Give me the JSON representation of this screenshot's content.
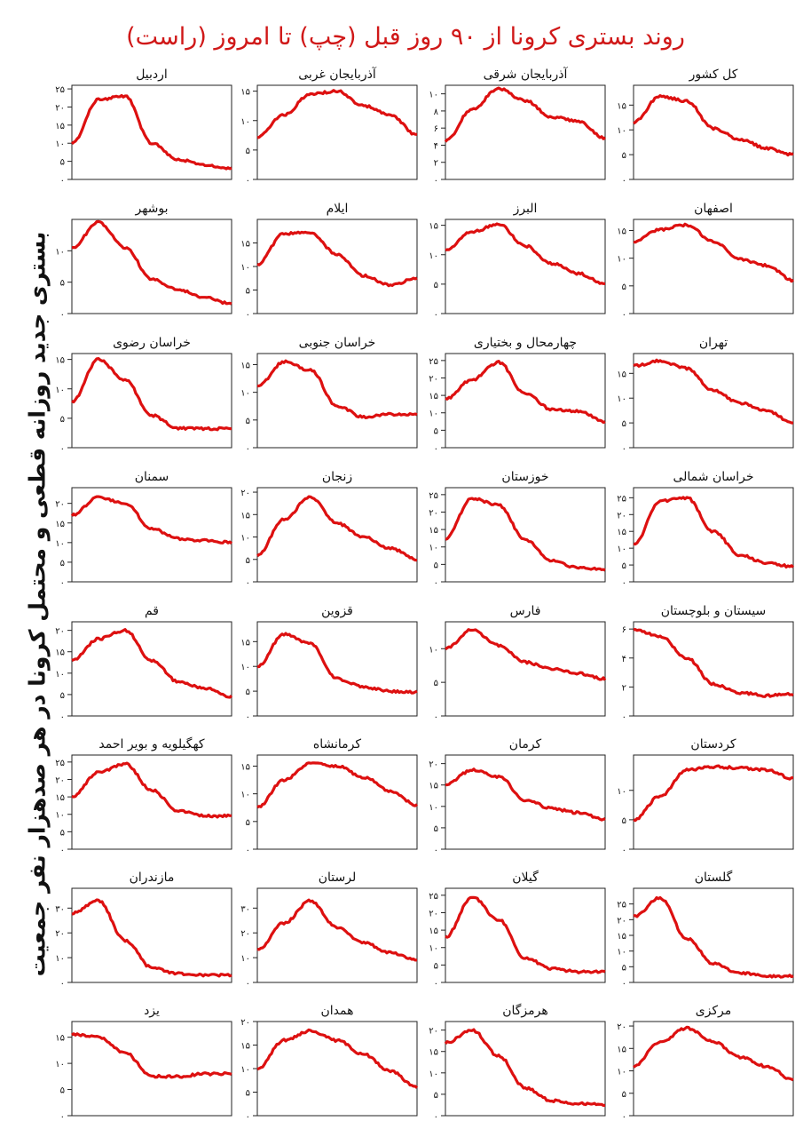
{
  "title": "روند بستری کرونا از ۹۰ روز قبل (چپ) تا امروز (راست)",
  "ylabel": "بستری جدید روزانه قطعی و محتمل کرونا در هر صدهزار نفر جمعیت",
  "colors": {
    "line": "#dd1010",
    "axis": "#222222",
    "title": "#d01818"
  },
  "chart_data": [
    {
      "type": "line",
      "title": "کل کشور",
      "ylim": [
        0,
        19
      ],
      "yticks": [
        0,
        5,
        10,
        15
      ],
      "tick_labels": [
        "۰",
        "۵",
        "۱۰",
        "۱۵"
      ],
      "x": [
        0,
        15,
        30,
        45,
        60,
        75,
        90
      ],
      "y": [
        11.5,
        16.8,
        15.8,
        10.3,
        8.1,
        6.3,
        5.0
      ]
    },
    {
      "type": "line",
      "title": "آذربایجان شرقی",
      "ylim": [
        0,
        11
      ],
      "yticks": [
        0,
        2,
        4,
        6,
        8,
        10
      ],
      "tick_labels": [
        "۰",
        "۲",
        "۴",
        "۶",
        "۸",
        "۱۰"
      ],
      "x": [
        0,
        15,
        30,
        45,
        60,
        75,
        90
      ],
      "y": [
        4.5,
        8.2,
        10.6,
        9.2,
        7.3,
        6.8,
        4.8
      ]
    },
    {
      "type": "line",
      "title": "آذربایجان غربی",
      "ylim": [
        0,
        16
      ],
      "yticks": [
        0,
        5,
        10,
        15
      ],
      "tick_labels": [
        "۰",
        "۵",
        "۱۰",
        "۱۵"
      ],
      "x": [
        0,
        15,
        30,
        45,
        60,
        75,
        90
      ],
      "y": [
        7.2,
        11.0,
        14.5,
        15.0,
        12.5,
        11.0,
        7.5
      ]
    },
    {
      "type": "line",
      "title": "اردبیل",
      "ylim": [
        0,
        26
      ],
      "yticks": [
        0,
        5,
        10,
        15,
        20,
        25
      ],
      "tick_labels": [
        "۰",
        "۵",
        "۱۰",
        "۱۵",
        "۲۰",
        "۲۵"
      ],
      "x": [
        0,
        15,
        30,
        45,
        60,
        75,
        90
      ],
      "y": [
        10.0,
        22.0,
        23.0,
        10.0,
        5.5,
        4.0,
        3.0
      ]
    },
    {
      "type": "line",
      "title": "اصفهان",
      "ylim": [
        0,
        17
      ],
      "yticks": [
        0,
        5,
        10,
        15
      ],
      "tick_labels": [
        "۰",
        "۵",
        "۱۰",
        "۱۵"
      ],
      "x": [
        0,
        15,
        30,
        45,
        60,
        75,
        90
      ],
      "y": [
        13.0,
        15.2,
        16.0,
        13.0,
        9.8,
        8.7,
        6.0
      ]
    },
    {
      "type": "line",
      "title": "البرز",
      "ylim": [
        0,
        16
      ],
      "yticks": [
        0,
        5,
        10,
        15
      ],
      "tick_labels": [
        "۰",
        "۵",
        "۱۰",
        "۱۵"
      ],
      "x": [
        0,
        15,
        30,
        45,
        60,
        75,
        90
      ],
      "y": [
        10.8,
        13.9,
        15.2,
        11.5,
        8.5,
        6.8,
        5.0
      ]
    },
    {
      "type": "line",
      "title": "ایلام",
      "ylim": [
        0,
        20
      ],
      "yticks": [
        0,
        5,
        10,
        15
      ],
      "tick_labels": [
        "۰",
        "۵",
        "۱۰",
        "۱۵"
      ],
      "x": [
        0,
        15,
        30,
        45,
        60,
        75,
        90
      ],
      "y": [
        10.5,
        17.0,
        17.2,
        12.5,
        8.0,
        6.0,
        7.5
      ]
    },
    {
      "type": "line",
      "title": "بوشهر",
      "ylim": [
        0,
        15
      ],
      "yticks": [
        0,
        5,
        10
      ],
      "tick_labels": [
        "۰",
        "۵",
        "۱۰"
      ],
      "x": [
        0,
        15,
        30,
        45,
        60,
        75,
        90
      ],
      "y": [
        10.5,
        14.5,
        10.5,
        5.5,
        3.8,
        2.6,
        1.5
      ]
    },
    {
      "type": "line",
      "title": "تهران",
      "ylim": [
        0,
        19
      ],
      "yticks": [
        0,
        5,
        10,
        15
      ],
      "tick_labels": [
        "۰",
        "۵",
        "۱۰",
        "۱۵"
      ],
      "x": [
        0,
        15,
        30,
        45,
        60,
        75,
        90
      ],
      "y": [
        16.5,
        17.5,
        16.0,
        11.5,
        9.0,
        7.5,
        5.0
      ]
    },
    {
      "type": "line",
      "title": "چهارمحال و بختیاری",
      "ylim": [
        0,
        27
      ],
      "yticks": [
        0,
        5,
        10,
        15,
        20,
        25
      ],
      "tick_labels": [
        "۰",
        "۵",
        "۱۰",
        "۱۵",
        "۲۰",
        "۲۵"
      ],
      "x": [
        0,
        15,
        30,
        45,
        60,
        75,
        90
      ],
      "y": [
        14.0,
        19.5,
        24.5,
        15.5,
        11.0,
        10.5,
        7.5
      ]
    },
    {
      "type": "line",
      "title": "خراسان جنوبی",
      "ylim": [
        0,
        17
      ],
      "yticks": [
        0,
        5,
        10,
        15
      ],
      "tick_labels": [
        "۰",
        "۵",
        "۱۰",
        "۱۵"
      ],
      "x": [
        0,
        15,
        30,
        45,
        60,
        75,
        90
      ],
      "y": [
        11.0,
        15.5,
        14.0,
        7.5,
        5.5,
        6.0,
        6.0
      ]
    },
    {
      "type": "line",
      "title": "خراسان رضوی",
      "ylim": [
        0,
        16
      ],
      "yticks": [
        0,
        5,
        10,
        15
      ],
      "tick_labels": [
        "۰",
        "۵",
        "۱۰",
        "۱۵"
      ],
      "x": [
        0,
        15,
        30,
        45,
        60,
        75,
        90
      ],
      "y": [
        7.8,
        15.0,
        11.5,
        5.5,
        3.3,
        3.2,
        3.3
      ]
    },
    {
      "type": "line",
      "title": "خراسان شمالی",
      "ylim": [
        0,
        28
      ],
      "yticks": [
        0,
        5,
        10,
        15,
        20,
        25
      ],
      "tick_labels": [
        "۰",
        "۵",
        "۱۰",
        "۱۵",
        "۲۰",
        "۲۵"
      ],
      "x": [
        0,
        15,
        30,
        45,
        60,
        75,
        90
      ],
      "y": [
        11.0,
        24.0,
        25.0,
        15.0,
        8.0,
        5.5,
        4.5
      ]
    },
    {
      "type": "line",
      "title": "خوزستان",
      "ylim": [
        0,
        27
      ],
      "yticks": [
        0,
        5,
        10,
        15,
        20,
        25
      ],
      "tick_labels": [
        "۰",
        "۵",
        "۱۰",
        "۱۵",
        "۲۰",
        "۲۵"
      ],
      "x": [
        0,
        15,
        30,
        45,
        60,
        75,
        90
      ],
      "y": [
        12.5,
        24.0,
        22.0,
        12.0,
        6.0,
        4.0,
        3.5
      ]
    },
    {
      "type": "line",
      "title": "زنجان",
      "ylim": [
        0,
        21
      ],
      "yticks": [
        0,
        5,
        10,
        15,
        20
      ],
      "tick_labels": [
        "۰",
        "۵",
        "۱۰",
        "۱۵",
        "۲۰"
      ],
      "x": [
        0,
        15,
        30,
        45,
        60,
        75,
        90
      ],
      "y": [
        6.0,
        14.0,
        19.0,
        13.0,
        10.0,
        7.5,
        5.0
      ]
    },
    {
      "type": "line",
      "title": "سمنان",
      "ylim": [
        0,
        24
      ],
      "yticks": [
        0,
        5,
        10,
        15,
        20
      ],
      "tick_labels": [
        "۰",
        "۵",
        "۱۰",
        "۱۵",
        "۲۰"
      ],
      "x": [
        0,
        15,
        30,
        45,
        60,
        75,
        90
      ],
      "y": [
        17.0,
        21.5,
        20.0,
        13.5,
        11.0,
        10.5,
        10.0
      ]
    },
    {
      "type": "line",
      "title": "سیستان و بلوچستان",
      "ylim": [
        0,
        6.5
      ],
      "yticks": [
        0,
        2,
        4,
        6
      ],
      "tick_labels": [
        "۰",
        "۲",
        "۴",
        "۶"
      ],
      "x": [
        0,
        15,
        30,
        45,
        60,
        75,
        90
      ],
      "y": [
        6.0,
        5.5,
        4.0,
        2.2,
        1.6,
        1.4,
        1.5
      ]
    },
    {
      "type": "line",
      "title": "فارس",
      "ylim": [
        0,
        14
      ],
      "yticks": [
        0,
        5,
        10
      ],
      "tick_labels": [
        "۰",
        "۵",
        "۱۰"
      ],
      "x": [
        0,
        15,
        30,
        45,
        60,
        75,
        90
      ],
      "y": [
        10.0,
        12.8,
        10.5,
        8.0,
        7.0,
        6.3,
        5.5
      ]
    },
    {
      "type": "line",
      "title": "قزوین",
      "ylim": [
        0,
        19
      ],
      "yticks": [
        0,
        5,
        10,
        15
      ],
      "tick_labels": [
        "۰",
        "۵",
        "۱۰",
        "۱۵"
      ],
      "x": [
        0,
        15,
        30,
        45,
        60,
        75,
        90
      ],
      "y": [
        10.0,
        16.5,
        14.5,
        7.5,
        5.8,
        5.0,
        4.8
      ]
    },
    {
      "type": "line",
      "title": "قم",
      "ylim": [
        0,
        22
      ],
      "yticks": [
        0,
        5,
        10,
        15,
        20
      ],
      "tick_labels": [
        "۰",
        "۵",
        "۱۰",
        "۱۵",
        "۲۰"
      ],
      "x": [
        0,
        15,
        30,
        45,
        60,
        75,
        90
      ],
      "y": [
        13.0,
        18.0,
        20.0,
        13.0,
        8.0,
        6.5,
        4.5
      ]
    },
    {
      "type": "line",
      "title": "کردستان",
      "ylim": [
        0,
        16
      ],
      "yticks": [
        0,
        5,
        10
      ],
      "tick_labels": [
        "۰",
        "۵",
        "۱۰"
      ],
      "x": [
        0,
        15,
        30,
        45,
        60,
        75,
        90
      ],
      "y": [
        5.0,
        9.0,
        13.5,
        14.0,
        13.8,
        13.5,
        12.0
      ]
    },
    {
      "type": "line",
      "title": "کرمان",
      "ylim": [
        0,
        22
      ],
      "yticks": [
        0,
        5,
        10,
        15,
        20
      ],
      "tick_labels": [
        "۰",
        "۵",
        "۱۰",
        "۱۵",
        "۲۰"
      ],
      "x": [
        0,
        15,
        30,
        45,
        60,
        75,
        90
      ],
      "y": [
        15.0,
        18.5,
        17.0,
        11.5,
        9.5,
        8.5,
        7.0
      ]
    },
    {
      "type": "line",
      "title": "کرمانشاه",
      "ylim": [
        0,
        17
      ],
      "yticks": [
        0,
        5,
        10,
        15
      ],
      "tick_labels": [
        "۰",
        "۵",
        "۱۰",
        "۱۵"
      ],
      "x": [
        0,
        15,
        30,
        45,
        60,
        75,
        90
      ],
      "y": [
        7.5,
        12.5,
        15.5,
        15.0,
        13.0,
        10.5,
        8.0
      ]
    },
    {
      "type": "line",
      "title": "کهگیلویه و بویر احمد",
      "ylim": [
        0,
        27
      ],
      "yticks": [
        0,
        5,
        10,
        15,
        20,
        25
      ],
      "tick_labels": [
        "۰",
        "۵",
        "۱۰",
        "۱۵",
        "۲۰",
        "۲۵"
      ],
      "x": [
        0,
        15,
        30,
        45,
        60,
        75,
        90
      ],
      "y": [
        15.0,
        22.0,
        24.5,
        17.0,
        11.0,
        9.5,
        9.5
      ]
    },
    {
      "type": "line",
      "title": "گلستان",
      "ylim": [
        0,
        30
      ],
      "yticks": [
        0,
        5,
        10,
        15,
        20,
        25
      ],
      "tick_labels": [
        "۰",
        "۵",
        "۱۰",
        "۱۵",
        "۲۰",
        "۲۵"
      ],
      "x": [
        0,
        15,
        30,
        45,
        60,
        75,
        90
      ],
      "y": [
        21.0,
        27.0,
        14.0,
        6.0,
        3.0,
        2.0,
        2.0
      ]
    },
    {
      "type": "line",
      "title": "گیلان",
      "ylim": [
        0,
        27
      ],
      "yticks": [
        0,
        5,
        10,
        15,
        20,
        25
      ],
      "tick_labels": [
        "۰",
        "۵",
        "۱۰",
        "۱۵",
        "۲۰",
        "۲۵"
      ],
      "x": [
        0,
        15,
        30,
        45,
        60,
        75,
        90
      ],
      "y": [
        13.0,
        24.5,
        18.0,
        7.0,
        4.0,
        3.0,
        3.0
      ]
    },
    {
      "type": "line",
      "title": "لرستان",
      "ylim": [
        0,
        38
      ],
      "yticks": [
        0,
        10,
        20,
        30
      ],
      "tick_labels": [
        "۰",
        "۱۰",
        "۲۰",
        "۳۰"
      ],
      "x": [
        0,
        15,
        30,
        45,
        60,
        75,
        90
      ],
      "y": [
        13.0,
        24.0,
        33.0,
        22.0,
        16.0,
        12.0,
        9.0
      ]
    },
    {
      "type": "line",
      "title": "مازندران",
      "ylim": [
        0,
        38
      ],
      "yticks": [
        0,
        10,
        20,
        30
      ],
      "tick_labels": [
        "۰",
        "۱۰",
        "۲۰",
        "۳۰"
      ],
      "x": [
        0,
        15,
        30,
        45,
        60,
        75,
        90
      ],
      "y": [
        28.0,
        33.0,
        17.0,
        6.0,
        3.5,
        3.0,
        3.0
      ]
    },
    {
      "type": "line",
      "title": "مرکزی",
      "ylim": [
        0,
        21
      ],
      "yticks": [
        0,
        5,
        10,
        15,
        20
      ],
      "tick_labels": [
        "۰",
        "۵",
        "۱۰",
        "۱۵",
        "۲۰"
      ],
      "x": [
        0,
        15,
        30,
        45,
        60,
        75,
        90
      ],
      "y": [
        11.0,
        16.5,
        19.5,
        16.5,
        13.0,
        11.0,
        8.0
      ]
    },
    {
      "type": "line",
      "title": "هرمزگان",
      "ylim": [
        0,
        22
      ],
      "yticks": [
        0,
        5,
        10,
        15,
        20
      ],
      "tick_labels": [
        "۰",
        "۵",
        "۱۰",
        "۱۵",
        "۲۰"
      ],
      "x": [
        0,
        15,
        30,
        45,
        60,
        75,
        90
      ],
      "y": [
        17.0,
        20.0,
        14.0,
        6.5,
        3.5,
        2.8,
        2.5
      ]
    },
    {
      "type": "line",
      "title": "همدان",
      "ylim": [
        0,
        20
      ],
      "yticks": [
        0,
        5,
        10,
        15,
        20
      ],
      "tick_labels": [
        "۰",
        "۵",
        "۱۰",
        "۱۵",
        "۲۰"
      ],
      "x": [
        0,
        15,
        30,
        45,
        60,
        75,
        90
      ],
      "y": [
        10.0,
        16.0,
        18.0,
        16.0,
        13.0,
        9.5,
        6.0
      ]
    },
    {
      "type": "line",
      "title": "یزد",
      "ylim": [
        0,
        18
      ],
      "yticks": [
        0,
        5,
        10,
        15
      ],
      "tick_labels": [
        "۰",
        "۵",
        "۱۰",
        "۱۵"
      ],
      "x": [
        0,
        15,
        30,
        45,
        60,
        75,
        90
      ],
      "y": [
        15.5,
        15.0,
        12.0,
        7.5,
        7.5,
        8.0,
        8.0
      ]
    }
  ]
}
